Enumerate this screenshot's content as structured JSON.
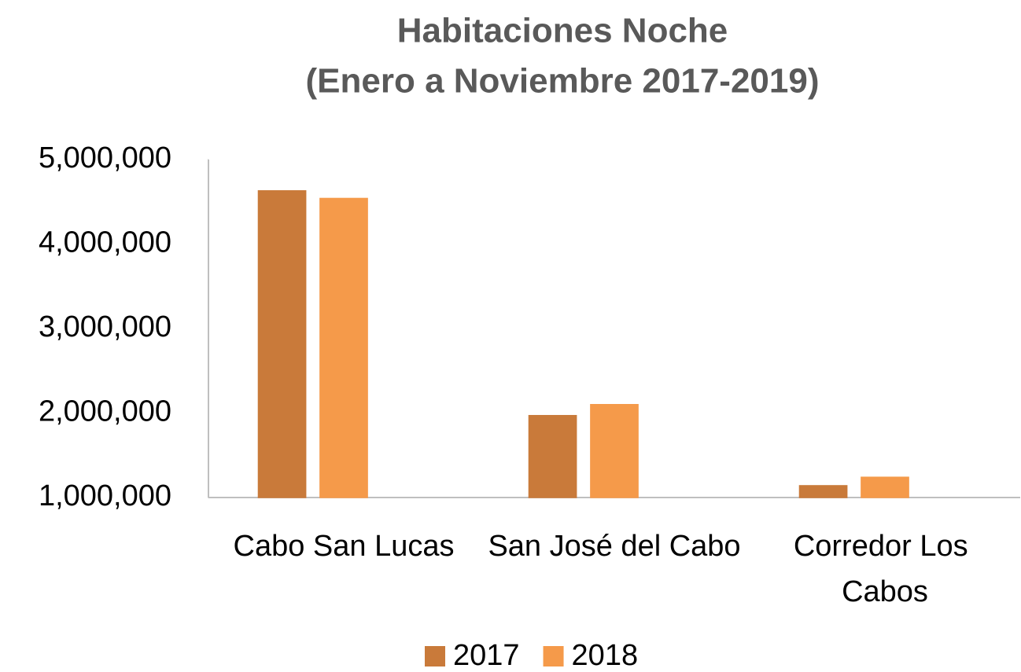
{
  "chart_data": {
    "type": "bar",
    "title": [
      "Habitaciones Noche",
      "(Enero a Noviembre 2017-2019)"
    ],
    "categories": [
      "Cabo San Lucas",
      "San José del Cabo",
      "Corredor Los Cabos"
    ],
    "series": [
      {
        "name": "2017",
        "color": "#c97a3a",
        "values": [
          4630000,
          1970000,
          1140000
        ]
      },
      {
        "name": "2018",
        "color": "#f59a4a",
        "values": [
          4540000,
          2100000,
          1240000
        ]
      },
      {
        "color": "#f3c79e",
        "values": [
          1000000,
          1000000,
          1000000
        ]
      }
    ],
    "ylim": [
      1000000,
      5000000
    ],
    "yticks": [
      {
        "value": 1000000,
        "label": "1,000,000"
      },
      {
        "value": 2000000,
        "label": "2,000,000"
      },
      {
        "value": 3000000,
        "label": "3,000,000"
      },
      {
        "value": 4000000,
        "label": "4,000,000"
      },
      {
        "value": 5000000,
        "label": "5,000,000"
      }
    ],
    "legend": "bottom"
  }
}
